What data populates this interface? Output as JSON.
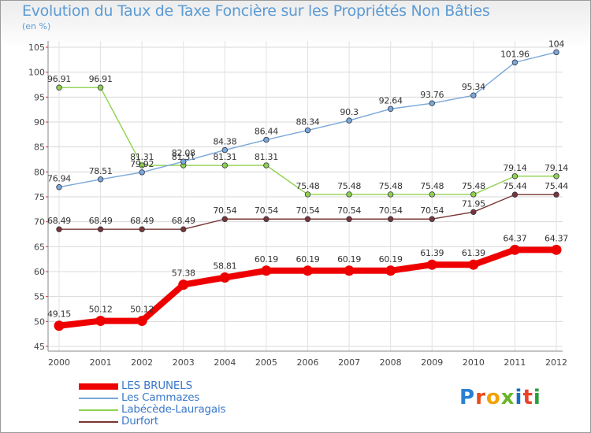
{
  "title": "Evolution du Taux de Taxe Foncière sur les Propriétés Non Bâties",
  "subtitle": "(en %)",
  "logo": {
    "letters": [
      "P",
      "r",
      "o",
      "x",
      "i",
      "t",
      "i"
    ],
    "colors": [
      "#2a7fd4",
      "#e84a1c",
      "#f2a300",
      "#6bb52c",
      "#1a6fc4",
      "#e8432a",
      "#2a9f3c"
    ]
  },
  "chart_data": {
    "type": "line",
    "title": "Evolution du Taux de Taxe Foncière sur les Propriétés Non Bâties",
    "ylabel": "(en %)",
    "x": [
      "2000",
      "2001",
      "2002",
      "2003",
      "2004",
      "2005",
      "2006",
      "2007",
      "2008",
      "2009",
      "2010",
      "2011",
      "2012"
    ],
    "ylim": [
      45,
      105
    ],
    "yticks": [
      45,
      50,
      55,
      60,
      65,
      70,
      75,
      80,
      85,
      90,
      95,
      100,
      105
    ],
    "grid": true,
    "legend_position": "bottom-left",
    "series": [
      {
        "name": "LES BRUNELS",
        "color": "#ee0000",
        "values": [
          49.15,
          50.12,
          50.12,
          57.38,
          58.81,
          60.19,
          60.19,
          60.19,
          60.19,
          61.39,
          61.39,
          64.37,
          64.37
        ],
        "labels": [
          "49.15",
          "50.12",
          "50.12",
          "57.38",
          "58.81",
          "60.19",
          "60.19",
          "60.19",
          "60.19",
          "61.39",
          "61.39",
          "64.37",
          "64.37"
        ]
      },
      {
        "name": "Les Cammazes",
        "color": "#7aa7d9",
        "values": [
          76.94,
          78.51,
          79.92,
          82.08,
          84.38,
          86.44,
          88.34,
          90.3,
          92.64,
          93.76,
          95.34,
          101.96,
          104
        ],
        "labels": [
          "76.94",
          "78.51",
          "79.92",
          "82.08",
          "84.38",
          "86.44",
          "88.34",
          "90.3",
          "92.64",
          "93.76",
          "95.34",
          "101.96",
          "104"
        ]
      },
      {
        "name": "Labécède-Lauragais",
        "color": "#8fd14f",
        "values": [
          96.91,
          96.91,
          81.31,
          81.31,
          81.31,
          81.31,
          75.48,
          75.48,
          75.48,
          75.48,
          75.48,
          79.14,
          79.14
        ],
        "labels": [
          "96.91",
          "96.91",
          "81.31",
          "81.31",
          "81.31",
          "81.31",
          "75.48",
          "75.48",
          "75.48",
          "75.48",
          "75.48",
          "79.14",
          "79.14"
        ]
      },
      {
        "name": "Durfort",
        "color": "#7a3535",
        "values": [
          68.49,
          68.49,
          68.49,
          68.49,
          70.54,
          70.54,
          70.54,
          70.54,
          70.54,
          70.54,
          71.95,
          75.44,
          75.44
        ],
        "labels": [
          "68.49",
          "68.49",
          "68.49",
          "68.49",
          "70.54",
          "70.54",
          "70.54",
          "70.54",
          "70.54",
          "70.54",
          "71.95",
          "75.44",
          "75.44"
        ]
      }
    ]
  }
}
